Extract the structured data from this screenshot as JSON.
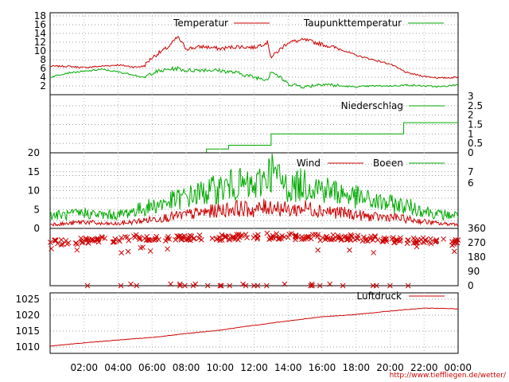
{
  "chart_data": [
    {
      "type": "line",
      "panel": "temperature",
      "ylim": [
        0,
        18
      ],
      "yticks": [
        2,
        4,
        6,
        8,
        10,
        12,
        14,
        16,
        18
      ],
      "x_hours": [
        0,
        1,
        2,
        3,
        4,
        5,
        5.5,
        6,
        7,
        7.5,
        8,
        9,
        10,
        11,
        12,
        12.8,
        13,
        14,
        15,
        16,
        17,
        18,
        19,
        20,
        21,
        22,
        23,
        24
      ],
      "series": [
        {
          "name": "Temperatur",
          "color": "#cc0000",
          "values": [
            6.5,
            6.5,
            6.2,
            6.5,
            6.8,
            6.3,
            6.5,
            8.5,
            11,
            13.2,
            10.5,
            11,
            10.5,
            11,
            10.8,
            12,
            8.5,
            12,
            12.5,
            11.5,
            10.5,
            9,
            8,
            7,
            5,
            4.2,
            3.8,
            4
          ]
        },
        {
          "name": "Taupunkttemperatur",
          "color": "#00aa00",
          "values": [
            4,
            5,
            5.3,
            5.8,
            5.2,
            4.5,
            3.8,
            5,
            5.8,
            6,
            5.5,
            5.7,
            5.5,
            5,
            4,
            3.5,
            5.5,
            2.5,
            1.8,
            2.5,
            2,
            1.8,
            2,
            2,
            2.2,
            2,
            1.8,
            2.3
          ]
        }
      ]
    },
    {
      "type": "line",
      "panel": "precipitation",
      "ylim": [
        0,
        3
      ],
      "yticks": [
        "0",
        "0.5",
        "1",
        "1.5",
        "2",
        "2.5",
        "3"
      ],
      "series": [
        {
          "name": "Niederschlag",
          "color": "#00aa00",
          "steps": [
            [
              0,
              0
            ],
            [
              9.2,
              0.2
            ],
            [
              10.5,
              0.4
            ],
            [
              13,
              1
            ],
            [
              20.8,
              1.6
            ],
            [
              24,
              1.6
            ]
          ]
        }
      ]
    },
    {
      "type": "line",
      "panel": "wind",
      "ylim": [
        0,
        20
      ],
      "yticks": [
        0,
        5,
        10,
        15,
        20
      ],
      "right_labels": [
        "7",
        "6"
      ],
      "x_hours": [
        0,
        1,
        2,
        3,
        4,
        5,
        6,
        7,
        8,
        9,
        10,
        11,
        12,
        13,
        14,
        15,
        16,
        17,
        18,
        19,
        20,
        21,
        22,
        23,
        24
      ],
      "series": [
        {
          "name": "Wind",
          "color": "#cc0000",
          "values": [
            1,
            1,
            1.5,
            1,
            1,
            1.5,
            2,
            2.5,
            3,
            3.5,
            4,
            4.5,
            4,
            5,
            4,
            4.5,
            4,
            3.5,
            3,
            2.5,
            2.5,
            2,
            1.5,
            1,
            1
          ]
        },
        {
          "name": "Boeen",
          "color": "#00aa00",
          "values": [
            3,
            3,
            3.5,
            3,
            3,
            4,
            5,
            6,
            7,
            8,
            9,
            10,
            9,
            13,
            9,
            10,
            9,
            8,
            7,
            6,
            5.5,
            5,
            4,
            3,
            3
          ]
        }
      ]
    },
    {
      "type": "scatter",
      "panel": "wind_direction",
      "ylim": [
        0,
        360
      ],
      "yticks": [
        "0",
        "90",
        "180",
        "270",
        "360"
      ],
      "marker": "x",
      "color": "#cc0000",
      "dominant_direction": [
        [
          0,
          270
        ],
        [
          5,
          300
        ],
        [
          9,
          300
        ],
        [
          13,
          310
        ],
        [
          18,
          300
        ],
        [
          24,
          270
        ]
      ]
    },
    {
      "type": "line",
      "panel": "pressure",
      "ylim": [
        1008,
        1027
      ],
      "yticks": [
        1010,
        1015,
        1020,
        1025
      ],
      "x_hours": [
        0,
        2,
        4,
        6,
        8,
        10,
        12,
        14,
        16,
        18,
        20,
        22,
        24
      ],
      "series": [
        {
          "name": "Luftdruck",
          "color": "#cc0000",
          "values": [
            1010.3,
            1011.3,
            1012.2,
            1013,
            1014.2,
            1015.3,
            1016.8,
            1018.2,
            1019.5,
            1020.2,
            1021.3,
            1022.2,
            1022
          ]
        }
      ]
    }
  ],
  "x_axis": {
    "ticks": [
      "02:00",
      "04:00",
      "06:00",
      "08:00",
      "10:00",
      "12:00",
      "14:00",
      "16:00",
      "18:00",
      "20:00",
      "22:00",
      "00:00"
    ]
  },
  "footer": {
    "url": "http://www.tiefflie​gen.de/wetter/"
  }
}
